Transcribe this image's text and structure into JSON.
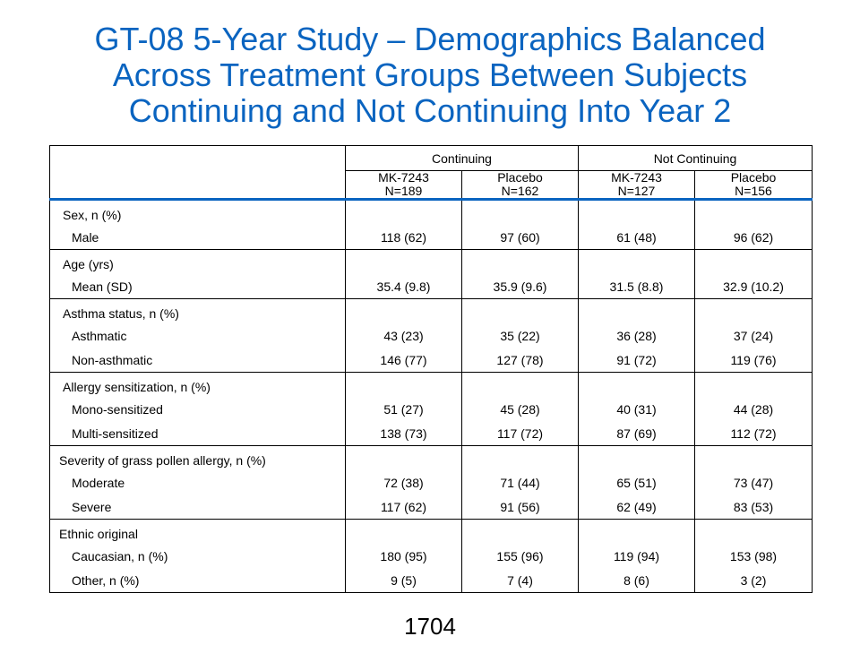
{
  "title_lines": [
    "GT-08 5-Year Study – Demographics Balanced",
    "Across Treatment Groups Between Subjects",
    "Continuing and Not Continuing Into Year 2"
  ],
  "table": {
    "groups": [
      "Continuing",
      "Not  Continuing"
    ],
    "columns": [
      {
        "name": "MK-7243",
        "n": "N=189"
      },
      {
        "name": "Placebo",
        "n": "N=162"
      },
      {
        "name": "MK-7243",
        "n": "N=127"
      },
      {
        "name": "Placebo",
        "n": "N=156"
      }
    ],
    "sections": [
      {
        "label": "Sex,  n  (%)",
        "indent": "cat",
        "rows": [
          {
            "label": "Male",
            "values": [
              "118  (62)",
              "97  (60)",
              "61  (48)",
              "96  (62)"
            ]
          }
        ]
      },
      {
        "label": "Age  (yrs)",
        "indent": "cat",
        "rows": [
          {
            "label": "Mean  (SD)",
            "values": [
              "35.4  (9.8)",
              "35.9  (9.6)",
              "31.5  (8.8)",
              "32.9  (10.2)"
            ]
          }
        ]
      },
      {
        "label": "Asthma  status,  n  (%)",
        "indent": "cat",
        "rows": [
          {
            "label": "Asthmatic",
            "values": [
              "43  (23)",
              "35  (22)",
              "36  (28)",
              "37  (24)"
            ]
          },
          {
            "label": "Non-asthmatic",
            "values": [
              "146  (77)",
              "127  (78)",
              "91  (72)",
              "119  (76)"
            ]
          }
        ]
      },
      {
        "label": "Allergy  sensitization,  n  (%)",
        "indent": "cat",
        "rows": [
          {
            "label": "Mono-sensitized",
            "values": [
              "51  (27)",
              "45  (28)",
              "40  (31)",
              "44  (28)"
            ]
          },
          {
            "label": "Multi-sensitized",
            "values": [
              "138  (73)",
              "117  (72)",
              "87  (69)",
              "112  (72)"
            ]
          }
        ]
      },
      {
        "label": "Severity  of  grass  pollen  allergy,  n  (%)",
        "indent": "sec",
        "rows": [
          {
            "label": "Moderate",
            "values": [
              "72  (38)",
              "71  (44)",
              "65  (51)",
              "73  (47)"
            ]
          },
          {
            "label": "Severe",
            "values": [
              "117  (62)",
              "91  (56)",
              "62  (49)",
              "83  (53)"
            ]
          }
        ]
      },
      {
        "label": "Ethnic  original",
        "indent": "sec",
        "rows": [
          {
            "label": "Caucasian,  n  (%)",
            "values": [
              "180  (95)",
              "155  (96)",
              "119  (94)",
              "153  (98)"
            ]
          },
          {
            "label": "Other,  n  (%)",
            "values": [
              "9  (5)",
              "7  (4)",
              "8  (6)",
              "3  (2)"
            ]
          }
        ]
      }
    ]
  },
  "page_number": "1704"
}
